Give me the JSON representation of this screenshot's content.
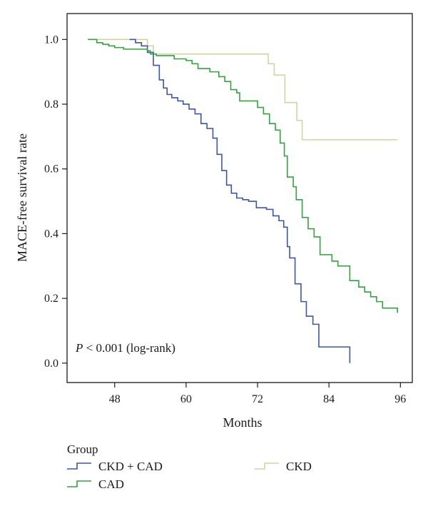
{
  "chart_data": {
    "type": "line",
    "step": true,
    "xlabel": "Months",
    "ylabel": "MACE-free survival rate",
    "xlim": [
      40,
      98
    ],
    "ylim": [
      -0.06,
      1.08
    ],
    "xticks": [
      48,
      60,
      72,
      84,
      96
    ],
    "yticks": [
      0.0,
      0.2,
      0.4,
      0.6,
      0.8,
      1.0
    ],
    "xtick_labels": [
      "48",
      "60",
      "72",
      "84",
      "96"
    ],
    "ytick_labels": [
      "0.0",
      "0.2",
      "0.4",
      "0.6",
      "0.8",
      "1.0"
    ],
    "annotation": {
      "prefix": "P",
      "text": " < 0.001 (log-rank)"
    },
    "legend": {
      "title": "Group",
      "position": "bottom",
      "labels": [
        "CKD + CAD",
        "CKD",
        "CAD"
      ]
    },
    "series": [
      {
        "name": "CKD + CAD",
        "color": "#3f55a5",
        "points": [
          [
            50.5,
            1.0
          ],
          [
            51.5,
            0.99
          ],
          [
            52.5,
            0.98
          ],
          [
            53.5,
            0.96
          ],
          [
            54.5,
            0.92
          ],
          [
            55.5,
            0.875
          ],
          [
            56.2,
            0.85
          ],
          [
            56.8,
            0.83
          ],
          [
            57.6,
            0.82
          ],
          [
            58.6,
            0.81
          ],
          [
            59.5,
            0.8
          ],
          [
            60.5,
            0.785
          ],
          [
            61.5,
            0.77
          ],
          [
            62.5,
            0.74
          ],
          [
            63.5,
            0.725
          ],
          [
            64.5,
            0.695
          ],
          [
            65.2,
            0.645
          ],
          [
            66.0,
            0.595
          ],
          [
            66.8,
            0.55
          ],
          [
            67.6,
            0.525
          ],
          [
            68.5,
            0.51
          ],
          [
            69.5,
            0.505
          ],
          [
            70.5,
            0.5
          ],
          [
            71.8,
            0.48
          ],
          [
            73.5,
            0.475
          ],
          [
            74.6,
            0.455
          ],
          [
            75.6,
            0.44
          ],
          [
            76.4,
            0.42
          ],
          [
            77.0,
            0.36
          ],
          [
            77.4,
            0.325
          ],
          [
            78.3,
            0.245
          ],
          [
            79.3,
            0.19
          ],
          [
            80.2,
            0.145
          ],
          [
            81.3,
            0.12
          ],
          [
            82.3,
            0.05
          ],
          [
            87.5,
            0.0
          ]
        ]
      },
      {
        "name": "CKD",
        "color": "#cdd6a3",
        "points": [
          [
            43.5,
            1.0
          ],
          [
            53.5,
            0.98
          ],
          [
            54.5,
            0.955
          ],
          [
            73.8,
            0.925
          ],
          [
            74.8,
            0.89
          ],
          [
            76.6,
            0.805
          ],
          [
            78.6,
            0.75
          ],
          [
            79.5,
            0.69
          ],
          [
            95.5,
            0.69
          ]
        ]
      },
      {
        "name": "CAD",
        "color": "#33a33d",
        "points": [
          [
            43.5,
            1.0
          ],
          [
            45.0,
            0.99
          ],
          [
            46.0,
            0.985
          ],
          [
            47.0,
            0.98
          ],
          [
            48.0,
            0.975
          ],
          [
            49.5,
            0.97
          ],
          [
            53.5,
            0.965
          ],
          [
            54.0,
            0.955
          ],
          [
            55.0,
            0.95
          ],
          [
            58.0,
            0.94
          ],
          [
            60.0,
            0.935
          ],
          [
            61.0,
            0.925
          ],
          [
            62.0,
            0.91
          ],
          [
            64.0,
            0.9
          ],
          [
            65.5,
            0.885
          ],
          [
            66.5,
            0.87
          ],
          [
            67.5,
            0.845
          ],
          [
            68.5,
            0.835
          ],
          [
            69.0,
            0.81
          ],
          [
            72.0,
            0.79
          ],
          [
            73.0,
            0.77
          ],
          [
            74.0,
            0.74
          ],
          [
            75.0,
            0.72
          ],
          [
            75.8,
            0.68
          ],
          [
            76.5,
            0.64
          ],
          [
            77.0,
            0.575
          ],
          [
            78.0,
            0.545
          ],
          [
            78.5,
            0.505
          ],
          [
            79.5,
            0.45
          ],
          [
            80.5,
            0.415
          ],
          [
            81.5,
            0.39
          ],
          [
            82.5,
            0.335
          ],
          [
            84.5,
            0.315
          ],
          [
            85.5,
            0.3
          ],
          [
            87.5,
            0.255
          ],
          [
            89.0,
            0.235
          ],
          [
            90.0,
            0.22
          ],
          [
            91.0,
            0.205
          ],
          [
            92.0,
            0.19
          ],
          [
            93.0,
            0.17
          ],
          [
            95.5,
            0.155
          ]
        ]
      }
    ]
  }
}
